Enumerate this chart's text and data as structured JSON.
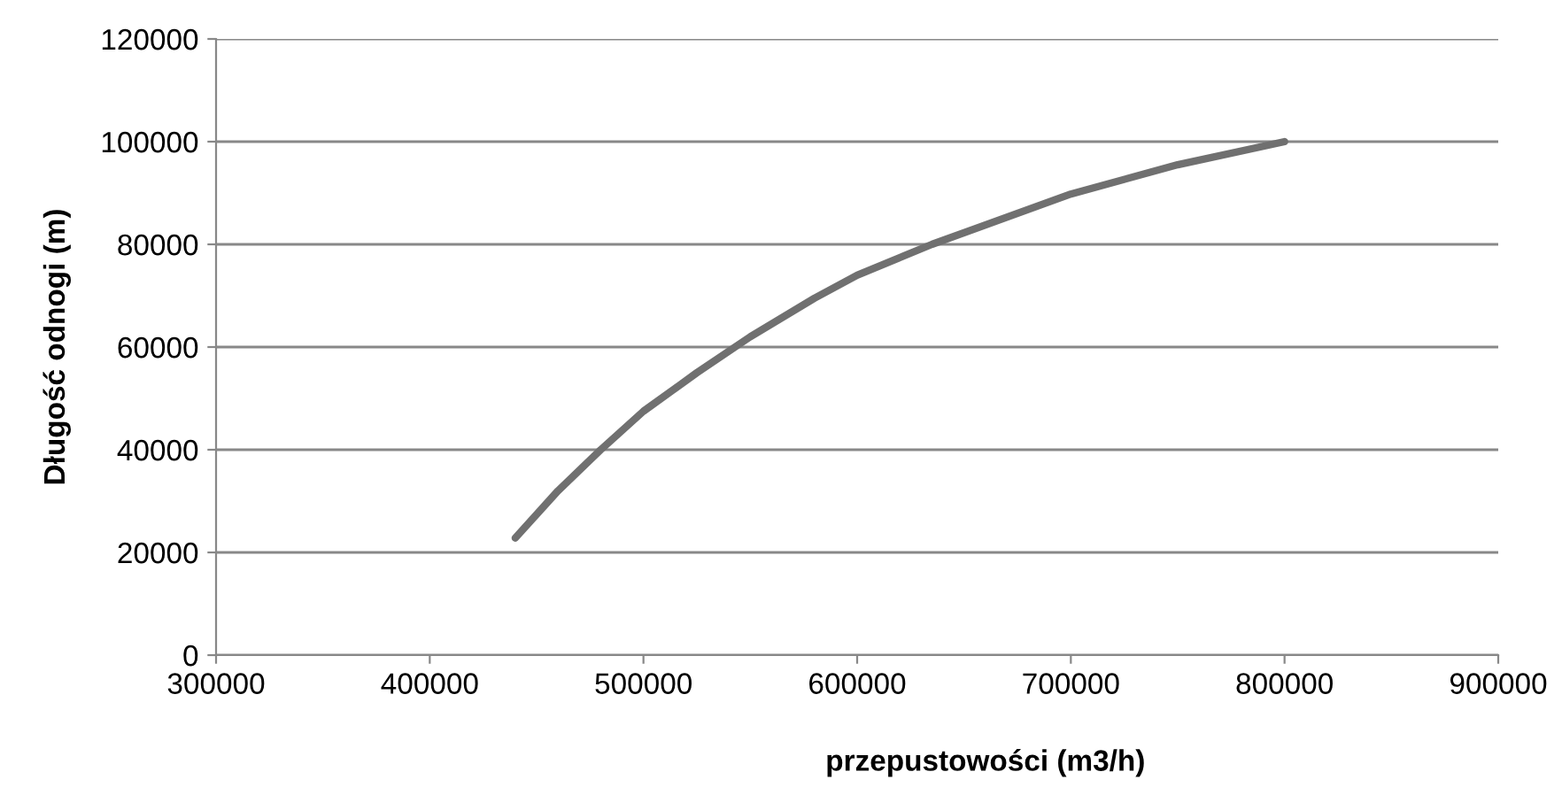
{
  "chart_data": {
    "type": "line",
    "xlabel": "przepustowości (m3/h)",
    "ylabel": "Długość odnogi (m)",
    "series": [
      {
        "color": "#707070",
        "x": [
          440000,
          460000,
          480000,
          500000,
          525000,
          550000,
          580000,
          600000,
          635000,
          700000,
          750000,
          800000
        ],
        "values": [
          22800,
          32000,
          40000,
          47500,
          55000,
          62000,
          69500,
          74000,
          80000,
          89800,
          95500,
          100000
        ]
      }
    ],
    "xlim": [
      300000,
      900000
    ],
    "xticks": [
      300000,
      400000,
      500000,
      600000,
      700000,
      800000,
      900000
    ],
    "ylim": [
      0,
      120000
    ],
    "yticks": [
      0,
      20000,
      40000,
      60000,
      80000,
      100000,
      120000
    ],
    "grid": "y",
    "legend": false,
    "marker": "none",
    "line_style": "solid"
  }
}
